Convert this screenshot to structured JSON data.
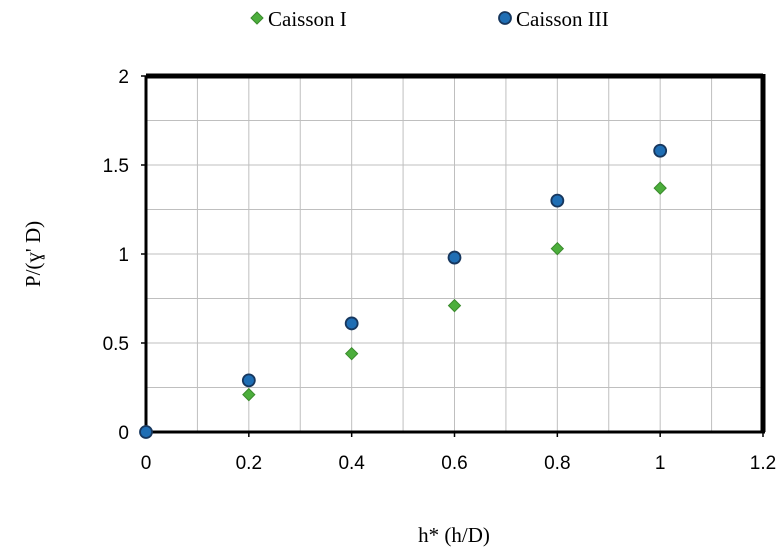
{
  "chart_data": {
    "type": "scatter",
    "title": "",
    "xlabel": "h* (h/D)",
    "ylabel": "P/(ɣ' D)",
    "xlim": [
      0,
      1.2
    ],
    "ylim": [
      0,
      2
    ],
    "xticks": [
      0,
      0.2,
      0.4,
      0.6,
      0.8,
      1,
      1.2
    ],
    "yticks": [
      0,
      0.5,
      1,
      1.5,
      2
    ],
    "x_tick_labels": [
      "0",
      "0.2",
      "0.4",
      "0.6",
      "0.8",
      "1",
      "1.2"
    ],
    "y_tick_labels": [
      "0",
      "0.5",
      "1",
      "1.5",
      "2"
    ],
    "x_minor_step": 0.1,
    "y_minor_step": 0.25,
    "grid": true,
    "legend_position": "top",
    "series": [
      {
        "name": "Caisson I",
        "marker": "diamond",
        "color": "#4cae3c",
        "edge_color": "#3a8a2c",
        "points": [
          {
            "x": 0,
            "y": 0
          },
          {
            "x": 0.2,
            "y": 0.21
          },
          {
            "x": 0.4,
            "y": 0.44
          },
          {
            "x": 0.6,
            "y": 0.71
          },
          {
            "x": 0.8,
            "y": 1.03
          },
          {
            "x": 1,
            "y": 1.37
          }
        ]
      },
      {
        "name": "Caisson III",
        "marker": "circle",
        "color": "#1f6eb4",
        "edge_color": "#17375e",
        "points": [
          {
            "x": 0,
            "y": 0
          },
          {
            "x": 0.2,
            "y": 0.29
          },
          {
            "x": 0.4,
            "y": 0.61
          },
          {
            "x": 0.6,
            "y": 0.98
          },
          {
            "x": 0.8,
            "y": 1.3
          },
          {
            "x": 1,
            "y": 1.58
          }
        ]
      }
    ]
  }
}
